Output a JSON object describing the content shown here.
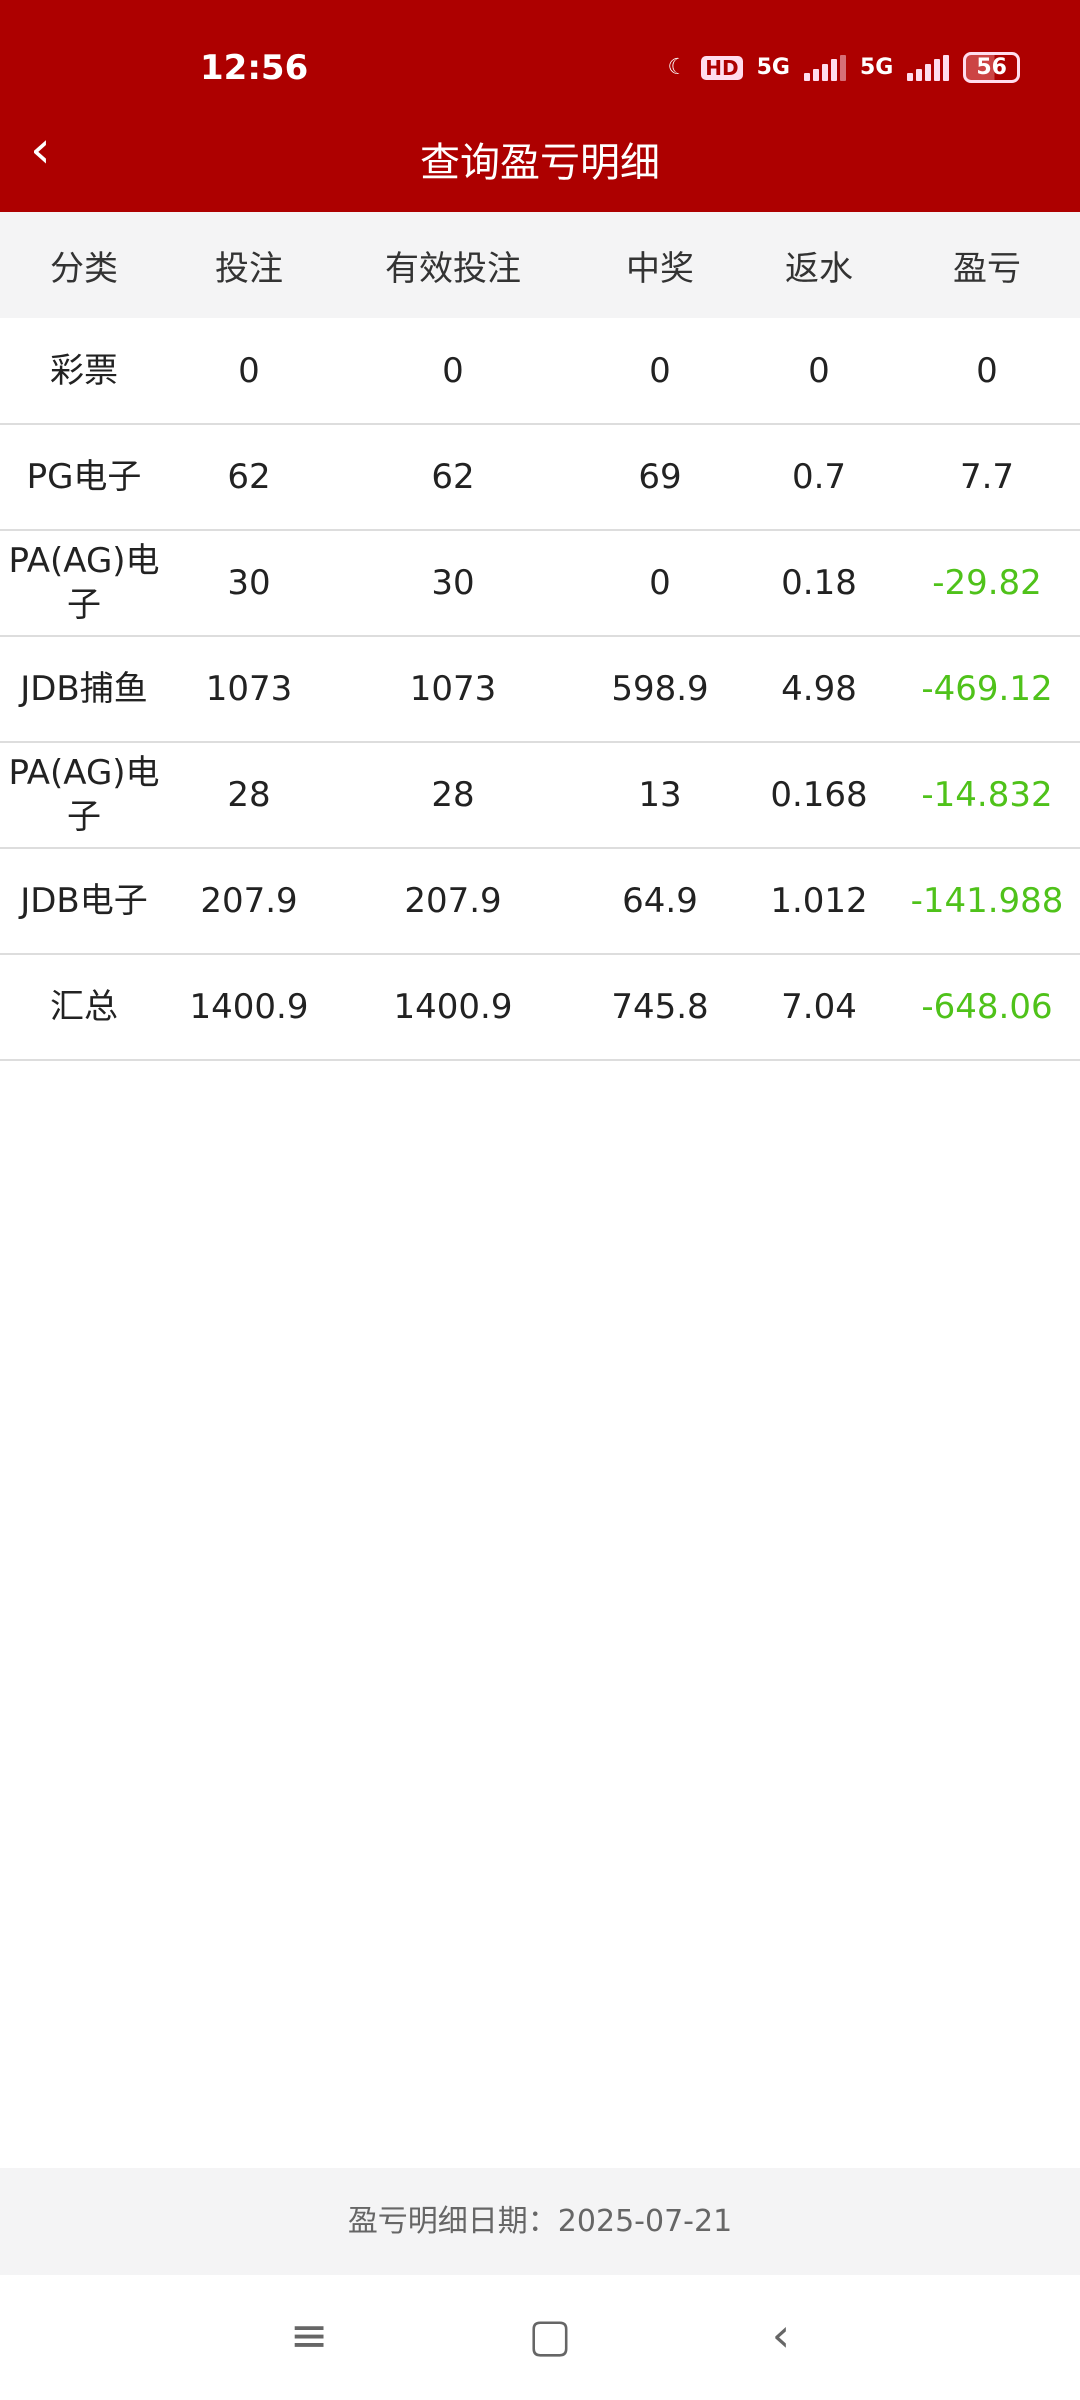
{
  "status": {
    "time": "12:56",
    "hd": "HD",
    "net1": "5G",
    "net2": "5G",
    "battery": "56"
  },
  "header": {
    "title": "查询盈亏明细",
    "back": "‹"
  },
  "table": {
    "columns": [
      "分类",
      "投注",
      "有效投注",
      "中奖",
      "返水",
      "盈亏"
    ],
    "rows": [
      [
        "彩票",
        "0",
        "0",
        "0",
        "0",
        "0"
      ],
      [
        "PG电子",
        "62",
        "62",
        "69",
        "0.7",
        "7.7"
      ],
      [
        "PA(AG)电子",
        "30",
        "30",
        "0",
        "0.18",
        "-29.82"
      ],
      [
        "JDB捕鱼",
        "1073",
        "1073",
        "598.9",
        "4.98",
        "-469.12"
      ],
      [
        "PA(AG)电子",
        "28",
        "28",
        "13",
        "0.168",
        "-14.832"
      ],
      [
        "JDB电子",
        "207.9",
        "207.9",
        "64.9",
        "1.012",
        "-141.988"
      ],
      [
        "汇总",
        "1400.9",
        "1400.9",
        "745.8",
        "7.04",
        "-648.06"
      ]
    ]
  },
  "footer": {
    "label": "盈亏明细日期：2025-07-21"
  },
  "colors": {
    "brand": "#ad0000",
    "negative": "#4fc21a"
  },
  "sysnav": {
    "menu": "≡",
    "home": "▢",
    "back": "‹"
  }
}
